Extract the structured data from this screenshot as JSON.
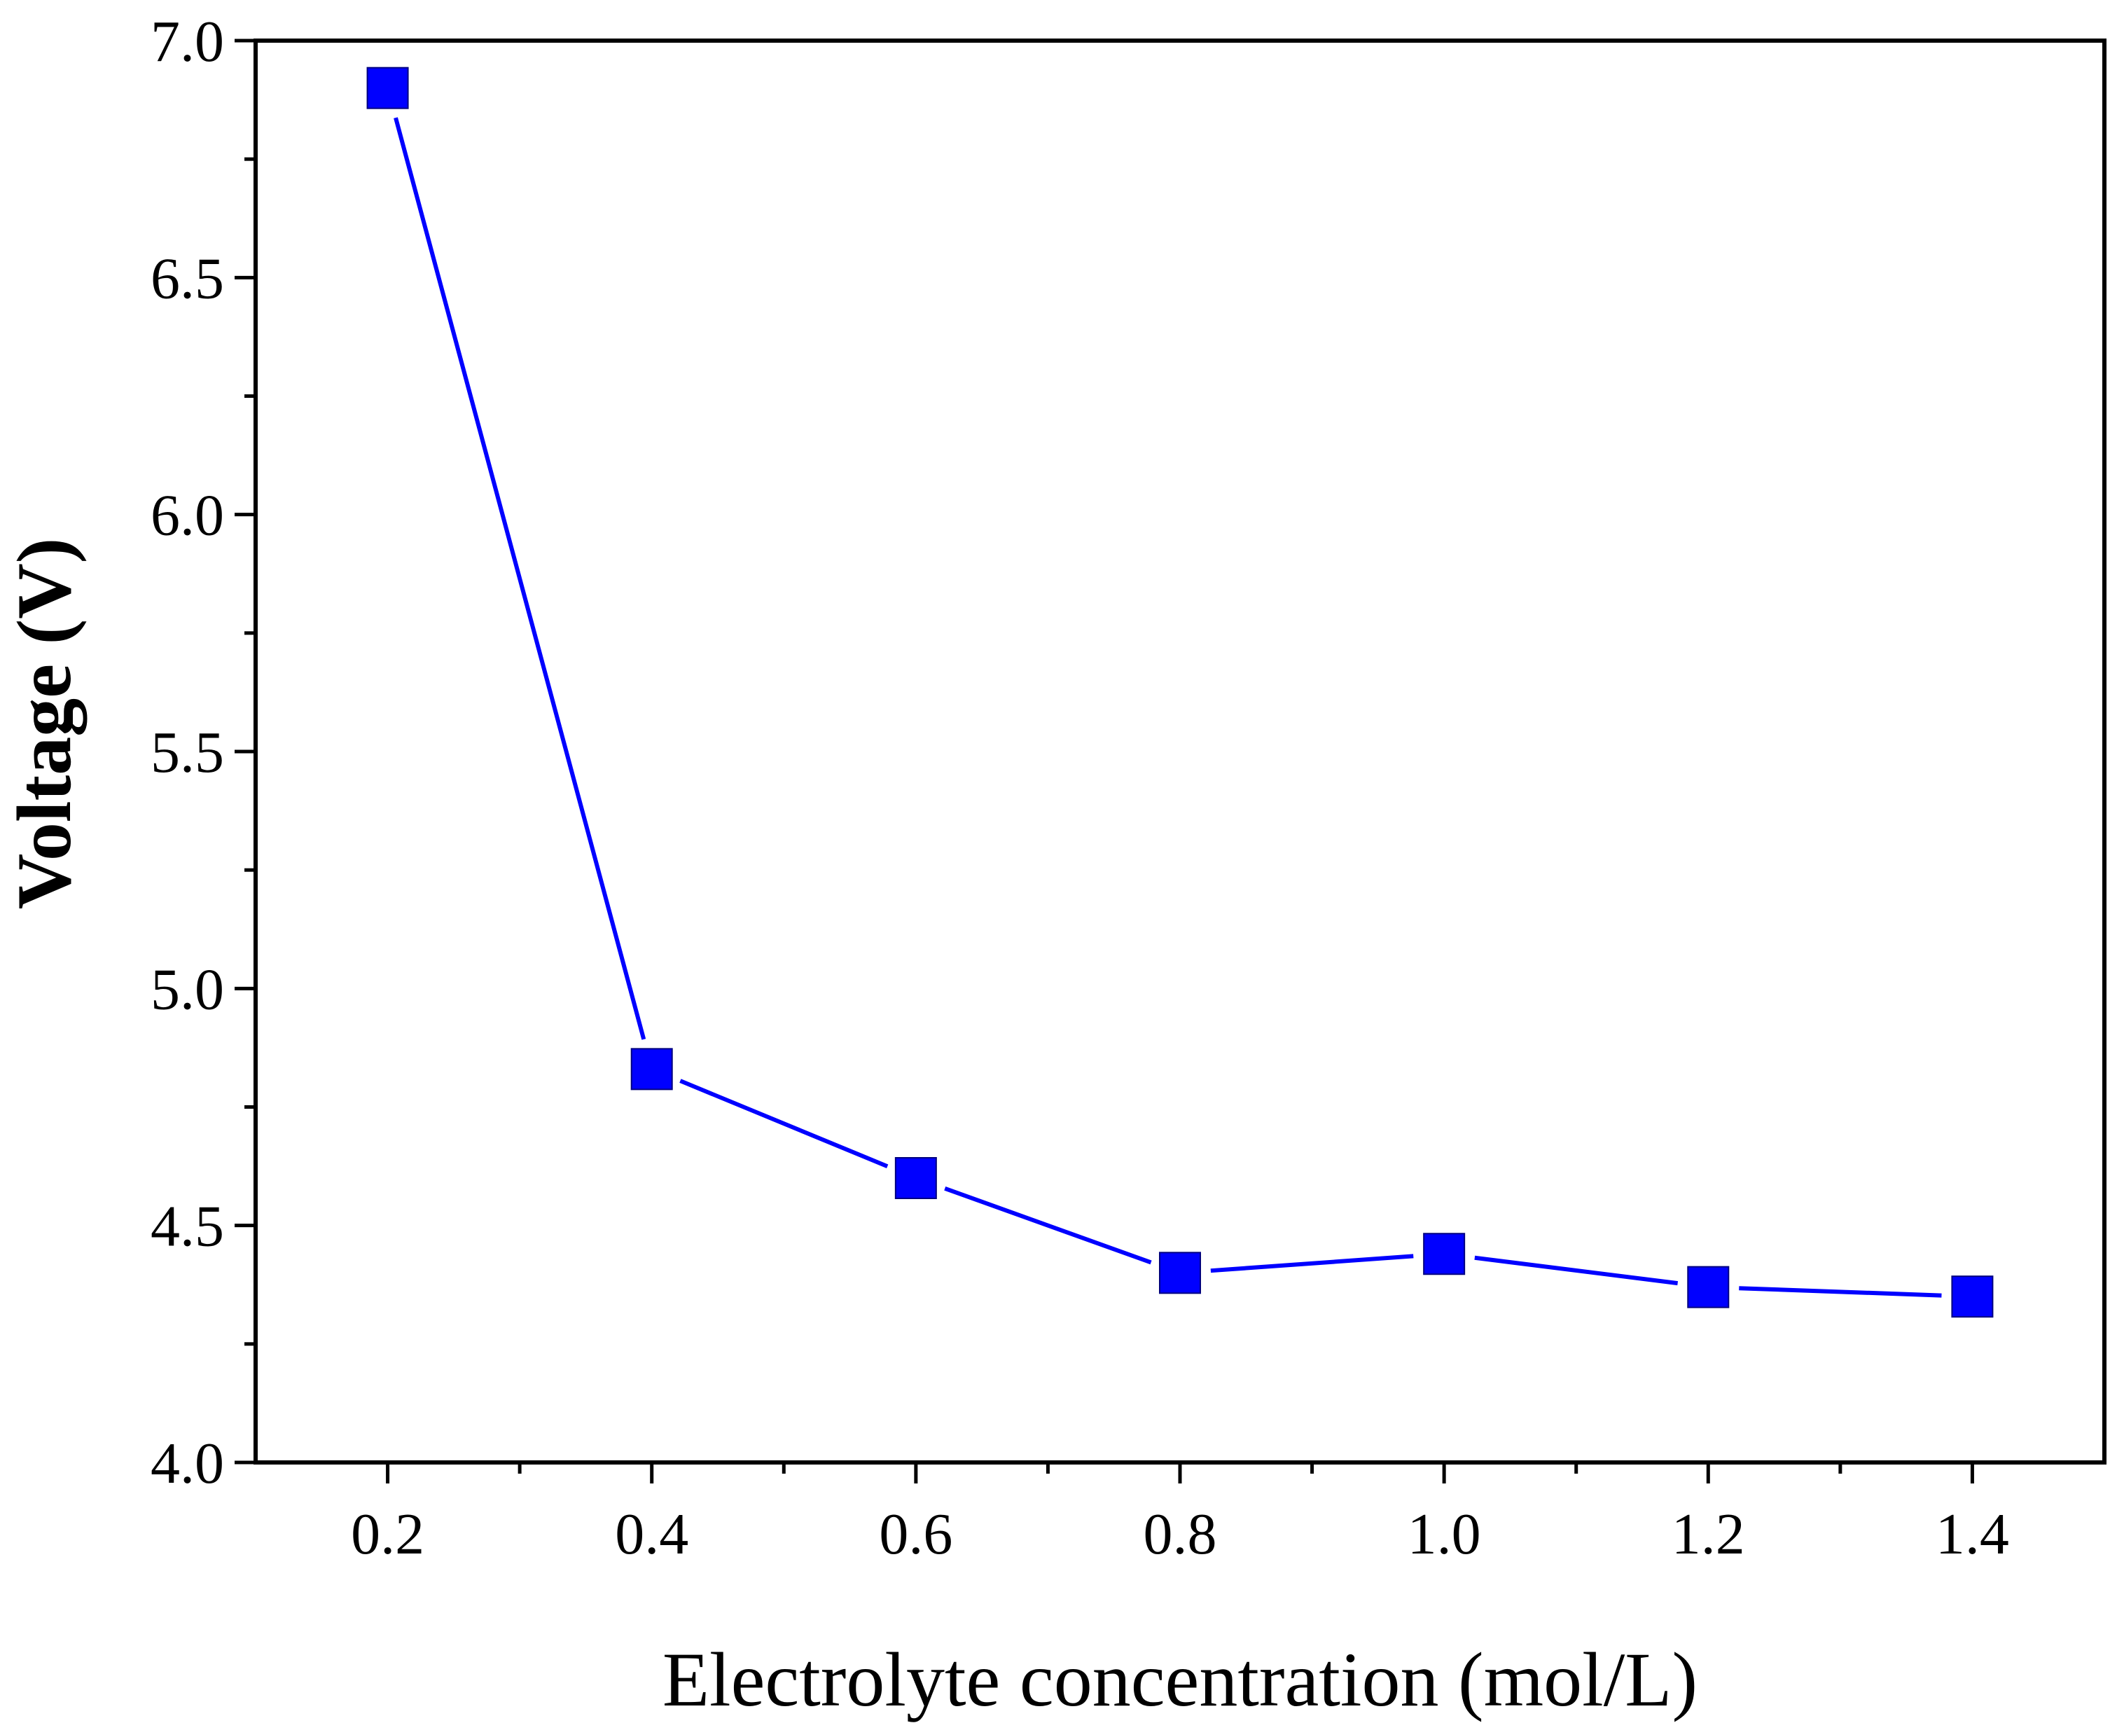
{
  "chart_data": {
    "type": "line",
    "title": "",
    "xlabel": "Electrolyte concentration (mol/L)",
    "ylabel": "Voltage (V)",
    "x": [
      0.2,
      0.4,
      0.6,
      0.8,
      1.0,
      1.2,
      1.4
    ],
    "series": [
      {
        "name": "Voltage",
        "values": [
          6.9,
          4.83,
          4.6,
          4.4,
          4.44,
          4.37,
          4.35
        ],
        "color": "#0000ff",
        "marker": "square"
      }
    ],
    "xlim": [
      0.1,
      1.5
    ],
    "ylim": [
      4.0,
      7.0
    ],
    "xticks": [
      0.2,
      0.4,
      0.6,
      0.8,
      1.0,
      1.2,
      1.4
    ],
    "xtick_labels": [
      "0.2",
      "0.4",
      "0.6",
      "0.8",
      "1.0",
      "1.2",
      "1.4"
    ],
    "yticks": [
      4.0,
      4.5,
      5.0,
      5.5,
      6.0,
      6.5,
      7.0
    ],
    "ytick_labels": [
      "4.0",
      "4.5",
      "5.0",
      "5.5",
      "6.0",
      "6.5",
      "7.0"
    ],
    "x_minor_step": 0.1,
    "y_minor_step": 0.25,
    "grid": false,
    "legend": "none"
  }
}
